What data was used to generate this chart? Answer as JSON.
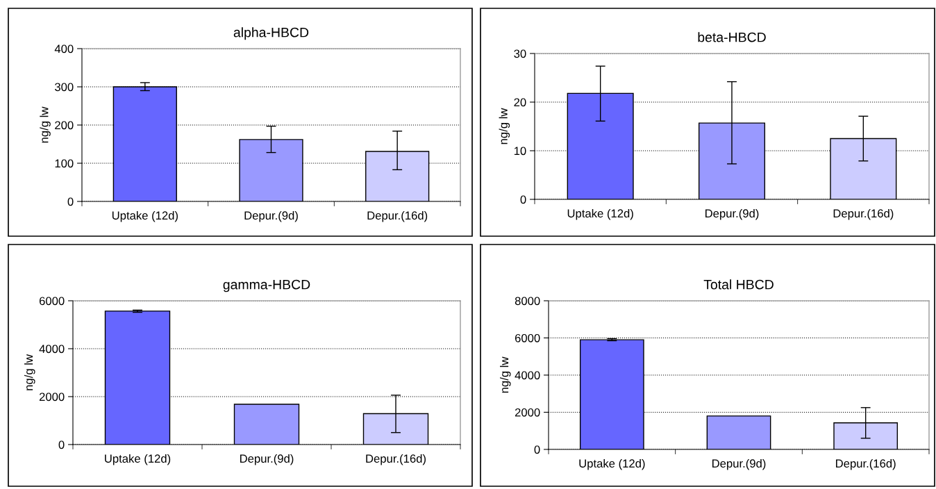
{
  "chart_data": [
    {
      "type": "bar",
      "title": "alpha-HBCD",
      "ylabel": "ng/g lw",
      "categories": [
        "Uptake (12d)",
        "Depur.(9d)",
        "Depur.(16d)"
      ],
      "values": [
        300,
        162,
        131
      ],
      "errors": [
        [
          290,
          311
        ],
        [
          128,
          197
        ],
        [
          83,
          184
        ]
      ],
      "colors": [
        "#6666ff",
        "#9999ff",
        "#ccccff"
      ],
      "ylim": [
        0,
        400
      ],
      "yticks": [
        0,
        100,
        200,
        300,
        400
      ],
      "grid": "y"
    },
    {
      "type": "bar",
      "title": "beta-HBCD",
      "ylabel": "ng/g lw",
      "categories": [
        "Uptake (12d)",
        "Depur.(9d)",
        "Depur.(16d)"
      ],
      "values": [
        21.8,
        15.7,
        12.5
      ],
      "errors": [
        [
          16.1,
          27.4
        ],
        [
          7.3,
          24.2
        ],
        [
          7.9,
          17.1
        ]
      ],
      "colors": [
        "#6666ff",
        "#9999ff",
        "#ccccff"
      ],
      "ylim": [
        0,
        30
      ],
      "yticks": [
        0,
        10,
        20,
        30
      ],
      "grid": "y"
    },
    {
      "type": "bar",
      "title": "gamma-HBCD",
      "ylabel": "ng/g lw",
      "categories": [
        "Uptake (12d)",
        "Depur.(9d)",
        "Depur.(16d)"
      ],
      "values": [
        5570,
        1680,
        1290
      ],
      "errors": [
        [
          5520,
          5610
        ],
        null,
        [
          500,
          2060
        ]
      ],
      "colors": [
        "#6666ff",
        "#9999ff",
        "#ccccff"
      ],
      "ylim": [
        0,
        6000
      ],
      "yticks": [
        0,
        2000,
        4000,
        6000
      ],
      "grid": "y"
    },
    {
      "type": "bar",
      "title": "Total HBCD",
      "ylabel": "ng/g lw",
      "categories": [
        "Uptake (12d)",
        "Depur.(9d)",
        "Depur.(16d)"
      ],
      "values": [
        5900,
        1800,
        1430
      ],
      "errors": [
        [
          5850,
          5960
        ],
        null,
        [
          600,
          2250
        ]
      ],
      "colors": [
        "#6666ff",
        "#9999ff",
        "#ccccff"
      ],
      "ylim": [
        0,
        8000
      ],
      "yticks": [
        0,
        2000,
        4000,
        6000,
        8000
      ],
      "grid": "y"
    }
  ]
}
